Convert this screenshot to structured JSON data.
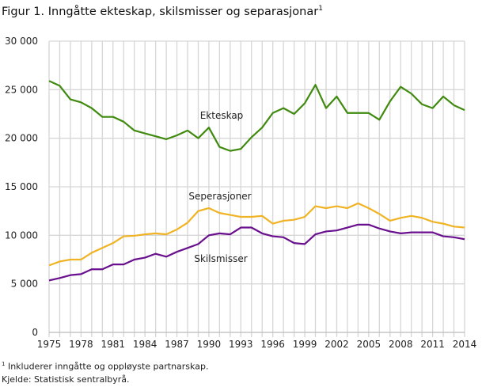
{
  "chart_data": {
    "type": "line",
    "title": "Figur 1. Inngåtte ekteskap,  skilsmisser og separasjonar",
    "title_footnote_mark": "1",
    "xlabel": "",
    "ylabel": "",
    "xlim": [
      1975,
      2014
    ],
    "ylim": [
      0,
      30000
    ],
    "yticks": [
      0,
      5000,
      10000,
      15000,
      20000,
      25000,
      30000
    ],
    "ytick_labels": [
      "0",
      "5 000",
      "10 000",
      "15 000",
      "20 000",
      "25 000",
      "30 000"
    ],
    "xticks": [
      1975,
      1978,
      1981,
      1984,
      1987,
      1990,
      1993,
      1996,
      1999,
      2002,
      2005,
      2008,
      2011,
      2014
    ],
    "grid": true,
    "x": [
      1975,
      1976,
      1977,
      1978,
      1979,
      1980,
      1981,
      1982,
      1983,
      1984,
      1985,
      1986,
      1987,
      1988,
      1989,
      1990,
      1991,
      1992,
      1993,
      1994,
      1995,
      1996,
      1997,
      1998,
      1999,
      2000,
      2001,
      2002,
      2003,
      2004,
      2005,
      2006,
      2007,
      2008,
      2009,
      2010,
      2011,
      2012,
      2013,
      2014
    ],
    "series": [
      {
        "name": "Ekteskap",
        "color": "#3f8a0f",
        "values": [
          25900,
          25400,
          24000,
          23700,
          23100,
          22200,
          22200,
          21700,
          20800,
          20500,
          20200,
          19900,
          20300,
          20800,
          20000,
          21100,
          19100,
          18700,
          18900,
          20100,
          21100,
          22600,
          23100,
          22500,
          23600,
          25500,
          23100,
          24300,
          22600,
          22600,
          22600,
          21900,
          23800,
          25300,
          24600,
          23500,
          23100,
          24300,
          23400,
          22900
        ]
      },
      {
        "name": "Seperasjoner",
        "color": "#f0b323",
        "values": [
          6900,
          7300,
          7500,
          7500,
          8200,
          8700,
          9200,
          9900,
          9950,
          10100,
          10200,
          10100,
          10600,
          11300,
          12500,
          12800,
          12300,
          12100,
          11900,
          11900,
          12000,
          11200,
          11500,
          11600,
          11900,
          13000,
          12800,
          13000,
          12800,
          13300,
          12800,
          12200,
          11500,
          11800,
          12000,
          11800,
          11400,
          11200,
          10900,
          10800
        ]
      },
      {
        "name": "Skilsmisser",
        "color": "#6a0f8e",
        "values": [
          5350,
          5600,
          5900,
          6000,
          6500,
          6500,
          7000,
          7000,
          7500,
          7700,
          8100,
          7800,
          8300,
          8700,
          9100,
          10000,
          10200,
          10100,
          10800,
          10800,
          10200,
          9900,
          9800,
          9200,
          9100,
          10100,
          10400,
          10500,
          10800,
          11100,
          11100,
          10700,
          10400,
          10200,
          10300,
          10300,
          10300,
          9900,
          9800,
          9600
        ]
      }
    ]
  },
  "footer": {
    "note_mark": "1",
    "note": " Inkluderer inngåtte og oppløyste partnarskap.",
    "source": "Kjelde: Statistisk sentralbyrå."
  }
}
